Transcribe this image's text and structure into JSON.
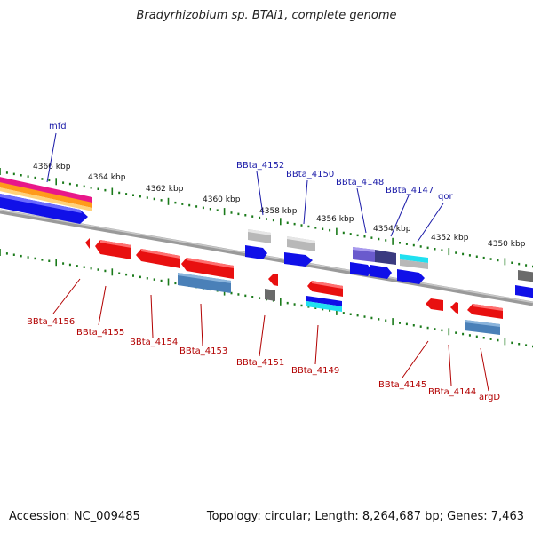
{
  "title": "Bradyrhizobium sp. BTAi1, complete genome",
  "footer": {
    "accession": "Accession: NC_009485",
    "summary": "Topology: circular; Length: 8,264,687 bp; Genes: 7,463"
  },
  "scale_labels": [
    "4366 kbp",
    "4364 kbp",
    "4362 kbp",
    "4360 kbp",
    "4358 kbp",
    "4356 kbp",
    "4354 kbp",
    "4352 kbp",
    "4350 kbp"
  ],
  "upper_gene_labels": [
    "mfd",
    "BBta_4152",
    "BBta_4150",
    "BBta_4148",
    "BBta_4147",
    "qor"
  ],
  "lower_gene_labels": [
    "BBta_4156",
    "BBta_4155",
    "BBta_4154",
    "BBta_4153",
    "BBta_4151",
    "BBta_4149",
    "BBta_4145",
    "BBta_4144",
    "argD"
  ],
  "colors": {
    "upper_label": "#1a1aa8",
    "lower_label": "#b20000",
    "backbone": "#808080",
    "tick": "#1a7a1a",
    "forward_gene": "#1010e8",
    "reverse_gene": "#e81010",
    "steel_gene": "#4a80b8",
    "light_gene": "#b8b8b8",
    "cyan_gene": "#20e0f0",
    "purple_gene": "#6a5acd",
    "navy_gene": "#3a3a80",
    "magenta_band": "#e8178a",
    "orange_band": "#ff9a1a"
  }
}
